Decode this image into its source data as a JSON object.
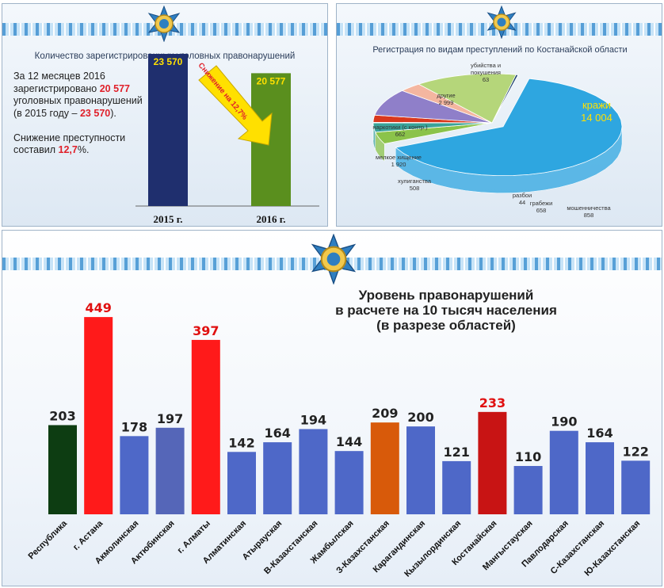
{
  "top_left": {
    "title": "Количество зарегистрированных уголовных правонарушений",
    "desc_line1": "За 12 месяцев 2016 зарегистрировано",
    "desc_value": "20 577",
    "desc_line2": "уголовных правонарушений",
    "desc_line3": "(в 2015 году –",
    "desc_prev": "23 570",
    "desc_line4": ").",
    "desc_line5": "Снижение преступности составил",
    "desc_pct": "12,7",
    "desc_line6": "%.",
    "arrow_label": "Снижение на 12,7%",
    "colors": {
      "bar_2015": "#1f2f6e",
      "bar_2016": "#5a8f1e",
      "arrow": "#ffe000",
      "value_text": "#ffe000"
    }
  },
  "top_right": {
    "title": "Регистрация по видам преступлений по Костанайской области"
  },
  "bottom": {
    "title_lines": [
      "Уровень правонарушений",
      "в расчете на 10 тысяч населения",
      "(в разрезе областей)"
    ],
    "colors": {
      "default": "#4e68c8",
      "republic": "#0d3d12",
      "highlight_red": "#ff1a1a",
      "dark_red": "#c81414",
      "orange": "#d85a0a",
      "aktobe": "#5566b8"
    }
  },
  "chart_data": [
    {
      "type": "bar",
      "categories": [
        "2015 г.",
        "2016 г."
      ],
      "values": [
        23570,
        20577
      ],
      "value_labels": [
        "23 570",
        "20 577"
      ],
      "title": "Количество зарегистрированных уголовных правонарушений",
      "ylim": [
        0,
        23570
      ],
      "grid": false
    },
    {
      "type": "pie",
      "title": "Регистрация по видам преступлений по Костанайской области",
      "slices": [
        {
          "name": "кражи",
          "value": 14004,
          "label": "14 004",
          "color": "#2ea6e0"
        },
        {
          "name": "мошенничества",
          "value": 858,
          "label": "858",
          "color": "#8bc34a"
        },
        {
          "name": "грабежи",
          "value": 658,
          "label": "658",
          "color": "#3aa39a"
        },
        {
          "name": "разбои",
          "value": 44,
          "label": "44",
          "color": "#1f6b8f"
        },
        {
          "name": "хулиганства",
          "value": 508,
          "label": "508",
          "color": "#d9381e"
        },
        {
          "name": "мелкое хищение",
          "value": 1920,
          "label": "1 920",
          "color": "#8f7fc9"
        },
        {
          "name": "наркотики (с контр.)",
          "value": 662,
          "label": "662",
          "color": "#f4b6a0"
        },
        {
          "name": "другие",
          "value": 2999,
          "label": "2 999",
          "color": "#b5d67a"
        },
        {
          "name": "убийства и покушения",
          "value": 63,
          "label": "63",
          "color": "#1b3f6e"
        }
      ]
    },
    {
      "type": "bar",
      "title": "Уровень правонарушений в расчете на 10 тысяч населения (в разрезе областей)",
      "categories": [
        "Республика",
        "г. Астана",
        "Акмолинская",
        "Актюбинская",
        "г. Алматы",
        "Алматинская",
        "Атырауская",
        "В-Казахстанская",
        "Жамбылская",
        "З-Казахстанская",
        "Карагандинская",
        "Кызылординская",
        "Костанайская",
        "Мангыстауская",
        "Павлодарская",
        "С-Казахстанская",
        "Ю-Казахстанская"
      ],
      "values": [
        203,
        449,
        178,
        197,
        397,
        142,
        164,
        194,
        144,
        209,
        200,
        121,
        233,
        110,
        190,
        164,
        122
      ],
      "value_labels": [
        "203",
        "449",
        "178",
        "197",
        "397",
        "142",
        "164",
        "194",
        "144",
        "209",
        "200",
        "121",
        "233",
        "110",
        "190",
        "164",
        "122"
      ],
      "bar_colors": [
        "#0d3d12",
        "#ff1a1a",
        "#4e68c8",
        "#5566b8",
        "#ff1a1a",
        "#4e68c8",
        "#4e68c8",
        "#4e68c8",
        "#4e68c8",
        "#d85a0a",
        "#4e68c8",
        "#4e68c8",
        "#c81414",
        "#4e68c8",
        "#4e68c8",
        "#4e68c8",
        "#4e68c8"
      ],
      "value_label_colors": [
        "#222",
        "#e01010",
        "#222",
        "#222",
        "#e01010",
        "#222",
        "#222",
        "#222",
        "#222",
        "#222",
        "#222",
        "#222",
        "#e01010",
        "#222",
        "#222",
        "#222",
        "#222"
      ],
      "ylim": [
        0,
        460
      ],
      "grid": false
    }
  ]
}
